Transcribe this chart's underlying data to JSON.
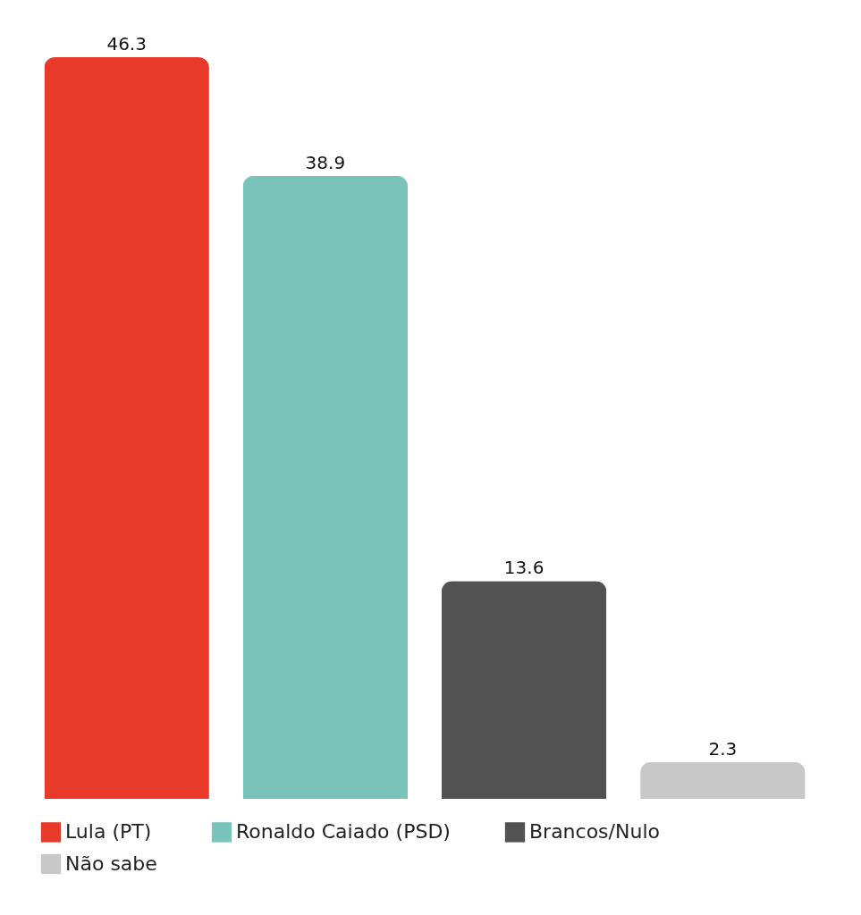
{
  "chart_data": {
    "type": "bar",
    "categories": [
      null,
      null,
      null,
      null
    ],
    "series": [
      {
        "name": "Lula (PT)",
        "color": "#e8392a",
        "values": [
          46.3,
          null,
          null,
          null
        ]
      },
      {
        "name": "Ronaldo Caiado (PSD)",
        "color": "#7ac3bb",
        "values": [
          null,
          38.9,
          null,
          null
        ]
      },
      {
        "name": "Brancos/Nulo",
        "color": "#525252",
        "values": [
          null,
          null,
          13.6,
          null
        ]
      },
      {
        "name": "Não sabe",
        "color": "#c8c8c8",
        "values": [
          null,
          null,
          null,
          2.3
        ]
      }
    ],
    "stacked": true,
    "data_labels": true,
    "legend": "bottom",
    "grid": false
  }
}
